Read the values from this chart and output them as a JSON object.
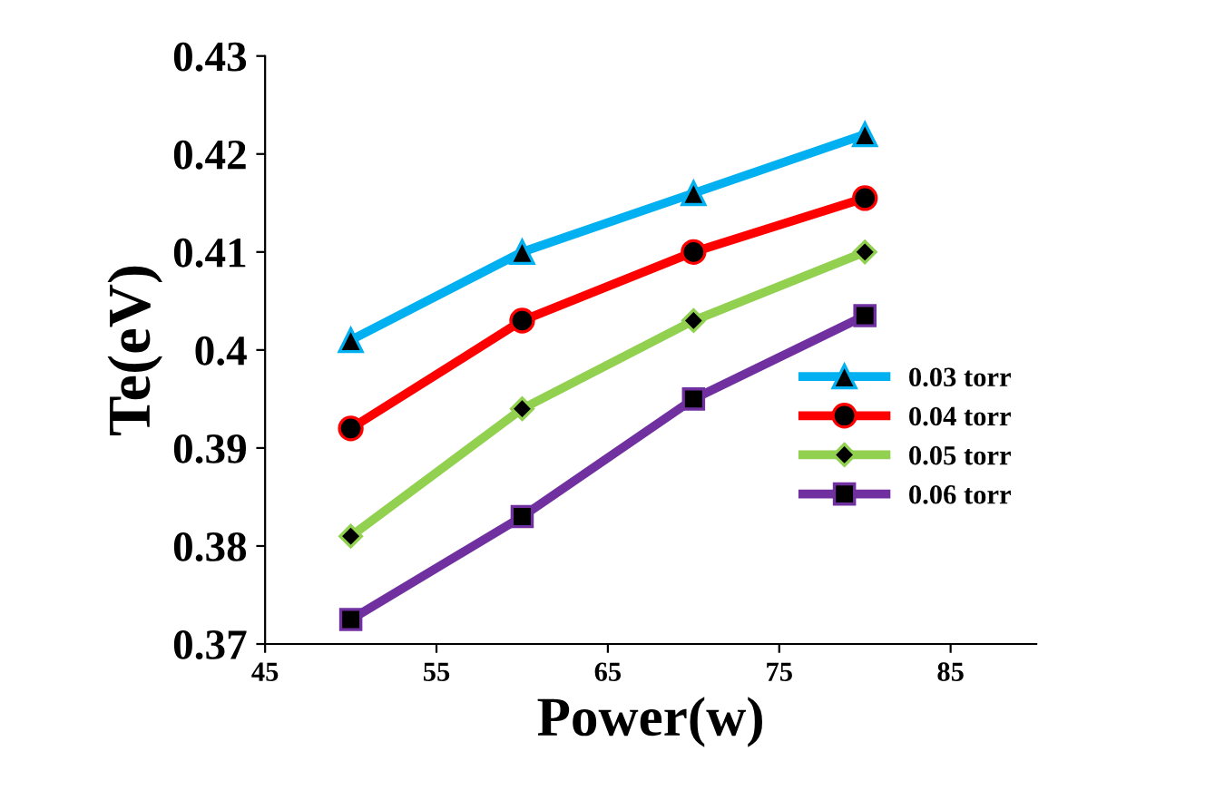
{
  "chart_data": {
    "type": "line",
    "xlabel": "Power(w)",
    "ylabel": "Te(eV)",
    "x": [
      50,
      60,
      70,
      80
    ],
    "series": [
      {
        "name": "0.03 torr",
        "color": "#00b0f0",
        "marker": "triangle",
        "values": [
          0.401,
          0.41,
          0.416,
          0.422
        ]
      },
      {
        "name": "0.04 torr",
        "color": "#ff0000",
        "marker": "circle",
        "values": [
          0.392,
          0.403,
          0.41,
          0.4155
        ]
      },
      {
        "name": "0.05 torr",
        "color": "#92d050",
        "marker": "diamond",
        "values": [
          0.381,
          0.394,
          0.403,
          0.41
        ]
      },
      {
        "name": "0.06 torr",
        "color": "#7030a0",
        "marker": "square",
        "values": [
          0.3725,
          0.383,
          0.395,
          0.4035
        ]
      }
    ],
    "xlim": [
      45,
      90
    ],
    "xticks": [
      45,
      55,
      65,
      75,
      85
    ],
    "ylim": [
      0.37,
      0.43
    ],
    "yticks": [
      {
        "value": 0.37,
        "label": "0.37"
      },
      {
        "value": 0.38,
        "label": "0.38"
      },
      {
        "value": 0.39,
        "label": "0.39"
      },
      {
        "value": 0.4,
        "label": "0.4"
      },
      {
        "value": 0.41,
        "label": "0.41"
      },
      {
        "value": 0.42,
        "label": "0.42"
      },
      {
        "value": 0.43,
        "label": "0.43"
      }
    ],
    "grid": false,
    "legend": "right",
    "line_style": "solid"
  }
}
